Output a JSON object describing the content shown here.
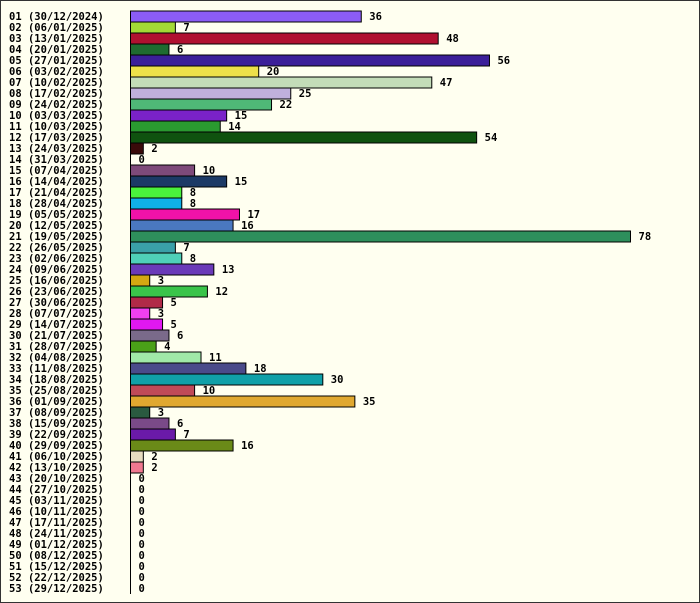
{
  "chart_data": {
    "type": "bar",
    "orientation": "horizontal",
    "title": "",
    "xlabel": "",
    "ylabel": "",
    "xlim": [
      0,
      78
    ],
    "grid": false,
    "legend": "none",
    "background": "#fffff0",
    "categories": [
      "01 (30/12/2024)",
      "02 (06/01/2025)",
      "03 (13/01/2025)",
      "04 (20/01/2025)",
      "05 (27/01/2025)",
      "06 (03/02/2025)",
      "07 (10/02/2025)",
      "08 (17/02/2025)",
      "09 (24/02/2025)",
      "10 (03/03/2025)",
      "11 (10/03/2025)",
      "12 (17/03/2025)",
      "13 (24/03/2025)",
      "14 (31/03/2025)",
      "15 (07/04/2025)",
      "16 (14/04/2025)",
      "17 (21/04/2025)",
      "18 (28/04/2025)",
      "19 (05/05/2025)",
      "20 (12/05/2025)",
      "21 (19/05/2025)",
      "22 (26/05/2025)",
      "23 (02/06/2025)",
      "24 (09/06/2025)",
      "25 (16/06/2025)",
      "26 (23/06/2025)",
      "27 (30/06/2025)",
      "28 (07/07/2025)",
      "29 (14/07/2025)",
      "30 (21/07/2025)",
      "31 (28/07/2025)",
      "32 (04/08/2025)",
      "33 (11/08/2025)",
      "34 (18/08/2025)",
      "35 (25/08/2025)",
      "36 (01/09/2025)",
      "37 (08/09/2025)",
      "38 (15/09/2025)",
      "39 (22/09/2025)",
      "40 (29/09/2025)",
      "41 (06/10/2025)",
      "42 (13/10/2025)",
      "43 (20/10/2025)",
      "44 (27/10/2025)",
      "45 (03/11/2025)",
      "46 (10/11/2025)",
      "47 (17/11/2025)",
      "48 (24/11/2025)",
      "49 (01/12/2025)",
      "50 (08/12/2025)",
      "51 (15/12/2025)",
      "52 (22/12/2025)",
      "53 (29/12/2025)"
    ],
    "values": [
      36,
      7,
      48,
      6,
      56,
      20,
      47,
      25,
      22,
      15,
      14,
      54,
      2,
      0,
      10,
      15,
      8,
      8,
      17,
      16,
      78,
      7,
      8,
      13,
      3,
      12,
      5,
      3,
      5,
      6,
      4,
      11,
      18,
      30,
      10,
      35,
      3,
      6,
      7,
      16,
      2,
      2,
      0,
      0,
      0,
      0,
      0,
      0,
      0,
      0,
      0,
      0,
      0
    ],
    "colors": [
      "#8b5cf6",
      "#a3d936",
      "#b01030",
      "#1f6b30",
      "#3b1f99",
      "#ede04a",
      "#c3dcb8",
      "#c0b0dc",
      "#4fb877",
      "#7a22c8",
      "#2a9a30",
      "#0f520f",
      "#3a0a0a",
      "#ffffff",
      "#7e4a7a",
      "#1c3a66",
      "#4af23c",
      "#10b0e8",
      "#f012a8",
      "#4a78c0",
      "#2e8f5c",
      "#3aa0a8",
      "#4fd0b8",
      "#6a3ab8",
      "#d4a812",
      "#3ac44a",
      "#b02a48",
      "#f040f0",
      "#e018f0",
      "#7a6a8a",
      "#4aa018",
      "#a0e8a8",
      "#4a4a8a",
      "#10a0a8",
      "#c04a58",
      "#e0a830",
      "#2a5a40",
      "#7a4a88",
      "#6a1aa8",
      "#6a8a18",
      "#e8dcc0",
      "#f07890",
      "#ffffff",
      "#ffffff",
      "#ffffff",
      "#ffffff",
      "#ffffff",
      "#ffffff",
      "#ffffff",
      "#ffffff",
      "#ffffff",
      "#ffffff",
      "#ffffff"
    ]
  }
}
